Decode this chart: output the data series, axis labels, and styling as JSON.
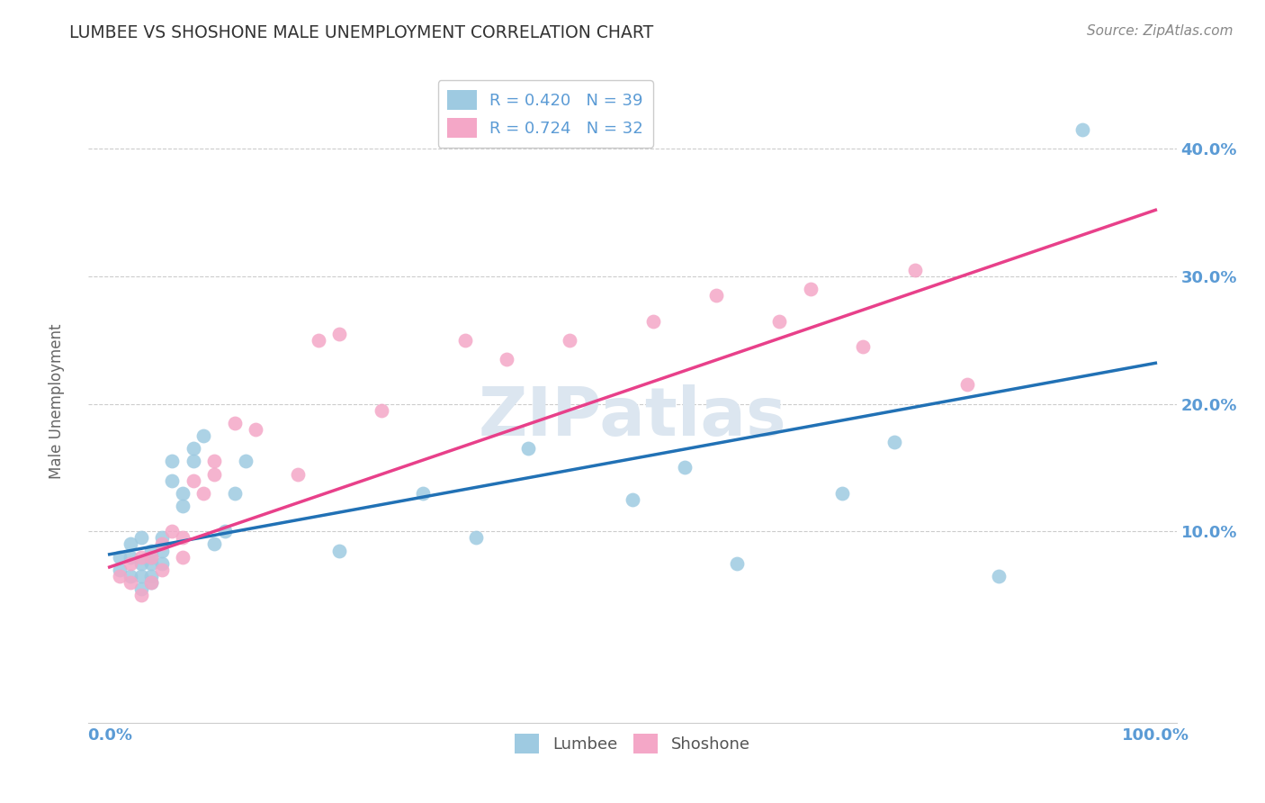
{
  "title": "LUMBEE VS SHOSHONE MALE UNEMPLOYMENT CORRELATION CHART",
  "source": "Source: ZipAtlas.com",
  "ylabel": "Male Unemployment",
  "y_tick_values": [
    0.1,
    0.2,
    0.3,
    0.4
  ],
  "xlim": [
    -0.02,
    1.02
  ],
  "ylim": [
    -0.05,
    0.46
  ],
  "legend_entries": [
    {
      "label": "R = 0.420   N = 39"
    },
    {
      "label": "R = 0.724   N = 32"
    }
  ],
  "legend_bottom": [
    "Lumbee",
    "Shoshone"
  ],
  "lumbee_x": [
    0.01,
    0.01,
    0.02,
    0.02,
    0.02,
    0.03,
    0.03,
    0.03,
    0.03,
    0.04,
    0.04,
    0.04,
    0.04,
    0.04,
    0.05,
    0.05,
    0.05,
    0.06,
    0.06,
    0.07,
    0.07,
    0.08,
    0.08,
    0.09,
    0.1,
    0.11,
    0.12,
    0.13,
    0.22,
    0.3,
    0.35,
    0.4,
    0.5,
    0.55,
    0.6,
    0.7,
    0.75,
    0.85,
    0.93
  ],
  "lumbee_y": [
    0.08,
    0.07,
    0.09,
    0.08,
    0.065,
    0.095,
    0.075,
    0.055,
    0.065,
    0.075,
    0.085,
    0.065,
    0.06,
    0.08,
    0.095,
    0.085,
    0.075,
    0.155,
    0.14,
    0.13,
    0.12,
    0.165,
    0.155,
    0.175,
    0.09,
    0.1,
    0.13,
    0.155,
    0.085,
    0.13,
    0.095,
    0.165,
    0.125,
    0.15,
    0.075,
    0.13,
    0.17,
    0.065,
    0.415
  ],
  "shoshone_x": [
    0.01,
    0.02,
    0.02,
    0.03,
    0.03,
    0.04,
    0.04,
    0.05,
    0.05,
    0.06,
    0.07,
    0.07,
    0.08,
    0.09,
    0.1,
    0.1,
    0.12,
    0.14,
    0.18,
    0.2,
    0.22,
    0.26,
    0.34,
    0.38,
    0.44,
    0.52,
    0.58,
    0.64,
    0.67,
    0.72,
    0.77,
    0.82
  ],
  "shoshone_y": [
    0.065,
    0.075,
    0.06,
    0.08,
    0.05,
    0.08,
    0.06,
    0.09,
    0.07,
    0.1,
    0.08,
    0.095,
    0.14,
    0.13,
    0.155,
    0.145,
    0.185,
    0.18,
    0.145,
    0.25,
    0.255,
    0.195,
    0.25,
    0.235,
    0.25,
    0.265,
    0.285,
    0.265,
    0.29,
    0.245,
    0.305,
    0.215
  ],
  "blue_line_x0": 0.0,
  "blue_line_x1": 1.0,
  "blue_line_y0": 0.082,
  "blue_line_y1": 0.232,
  "pink_line_x0": 0.0,
  "pink_line_x1": 1.0,
  "pink_line_y0": 0.072,
  "pink_line_y1": 0.352,
  "blue_line_color": "#2171b5",
  "pink_line_color": "#e8408a",
  "blue_dot_color": "#9ecae1",
  "pink_dot_color": "#f4a7c7",
  "background_color": "#ffffff",
  "grid_color": "#cccccc",
  "title_color": "#333333",
  "axis_label_color": "#666666",
  "tick_label_color": "#5b9bd5",
  "watermark_color": "#dce6f0",
  "source_color": "#888888"
}
